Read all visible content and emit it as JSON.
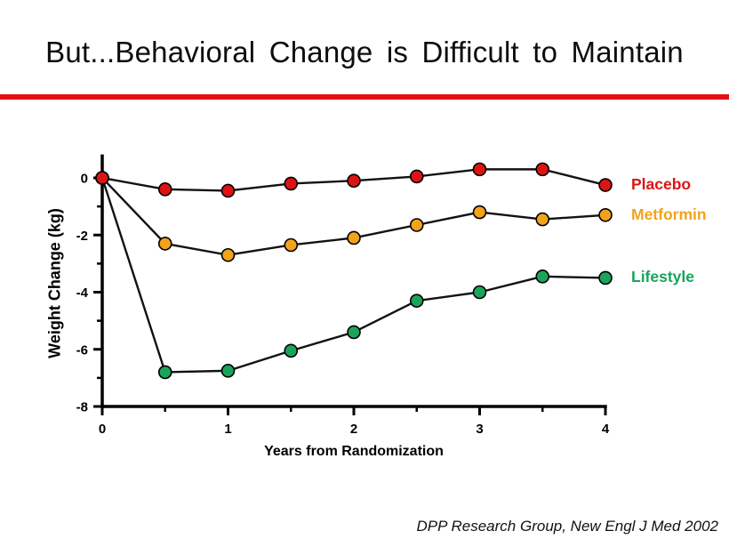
{
  "slide": {
    "title": "But...Behavioral Change is Difficult to Maintain",
    "footer": "DPP Research Group, New Engl J Med 2002",
    "accent_rule_color": "#e01313",
    "background_color": "#ffffff"
  },
  "chart_data": {
    "type": "line",
    "title": "",
    "xlabel": "Years from Randomization",
    "ylabel": "Weight Change (kg)",
    "x": [
      0,
      0.5,
      1,
      1.5,
      2,
      2.5,
      3,
      3.5,
      4
    ],
    "xlim": [
      0,
      4
    ],
    "ylim": [
      -8,
      0.82
    ],
    "x_ticks": [
      0,
      1,
      2,
      3,
      4
    ],
    "x_minor_ticks": [
      0.5,
      1.5,
      2.5,
      3.5
    ],
    "y_ticks": [
      0,
      -2,
      -4,
      -6,
      -8
    ],
    "y_minor_ticks": [
      -1,
      -3,
      -5,
      -7
    ],
    "grid": false,
    "legend_position": "right",
    "line_color": "#121212",
    "series": [
      {
        "name": "Placebo",
        "color": "#dd1414",
        "values": [
          0,
          -0.4,
          -0.45,
          -0.2,
          -0.1,
          0.05,
          0.3,
          0.3,
          -0.25
        ]
      },
      {
        "name": "Metformin",
        "color": "#f2a31c",
        "values": [
          0,
          -2.3,
          -2.7,
          -2.35,
          -2.1,
          -1.65,
          -1.2,
          -1.45,
          -1.3
        ]
      },
      {
        "name": "Lifestyle",
        "color": "#1aa45a",
        "values": [
          0,
          -6.8,
          -6.75,
          -6.05,
          -5.4,
          -4.3,
          -4.0,
          -3.45,
          -3.5
        ]
      }
    ]
  }
}
